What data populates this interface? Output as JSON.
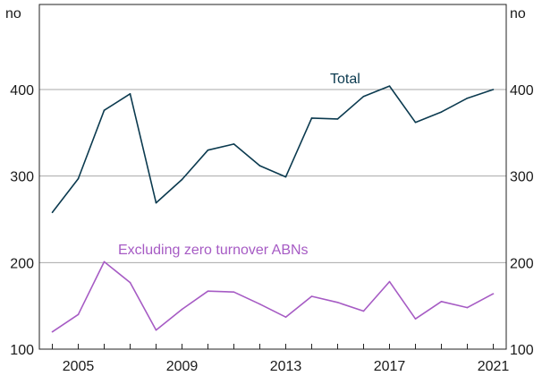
{
  "chart_data": {
    "type": "line",
    "x": [
      2004,
      2005,
      2006,
      2007,
      2008,
      2009,
      2010,
      2011,
      2012,
      2013,
      2014,
      2015,
      2016,
      2017,
      2018,
      2019,
      2020,
      2021
    ],
    "x_tick_labels": [
      "2005",
      "2009",
      "2013",
      "2017",
      "2021"
    ],
    "y_tick_labels": [
      "100",
      "200",
      "300",
      "400"
    ],
    "unit_left": "no",
    "unit_right": "no",
    "ylim": [
      100,
      400
    ],
    "grid": true,
    "series": [
      {
        "name": "Total",
        "color": "#0b3a4f",
        "values": [
          258,
          297,
          376,
          395,
          269,
          296,
          330,
          337,
          312,
          299,
          367,
          366,
          392,
          404,
          362,
          374,
          390,
          400
        ]
      },
      {
        "name": "Excluding zero turnover ABNs",
        "color": "#a65bc4",
        "values": [
          120,
          140,
          201,
          177,
          122,
          146,
          167,
          166,
          152,
          137,
          161,
          154,
          144,
          178,
          135,
          155,
          148,
          164
        ]
      }
    ]
  }
}
